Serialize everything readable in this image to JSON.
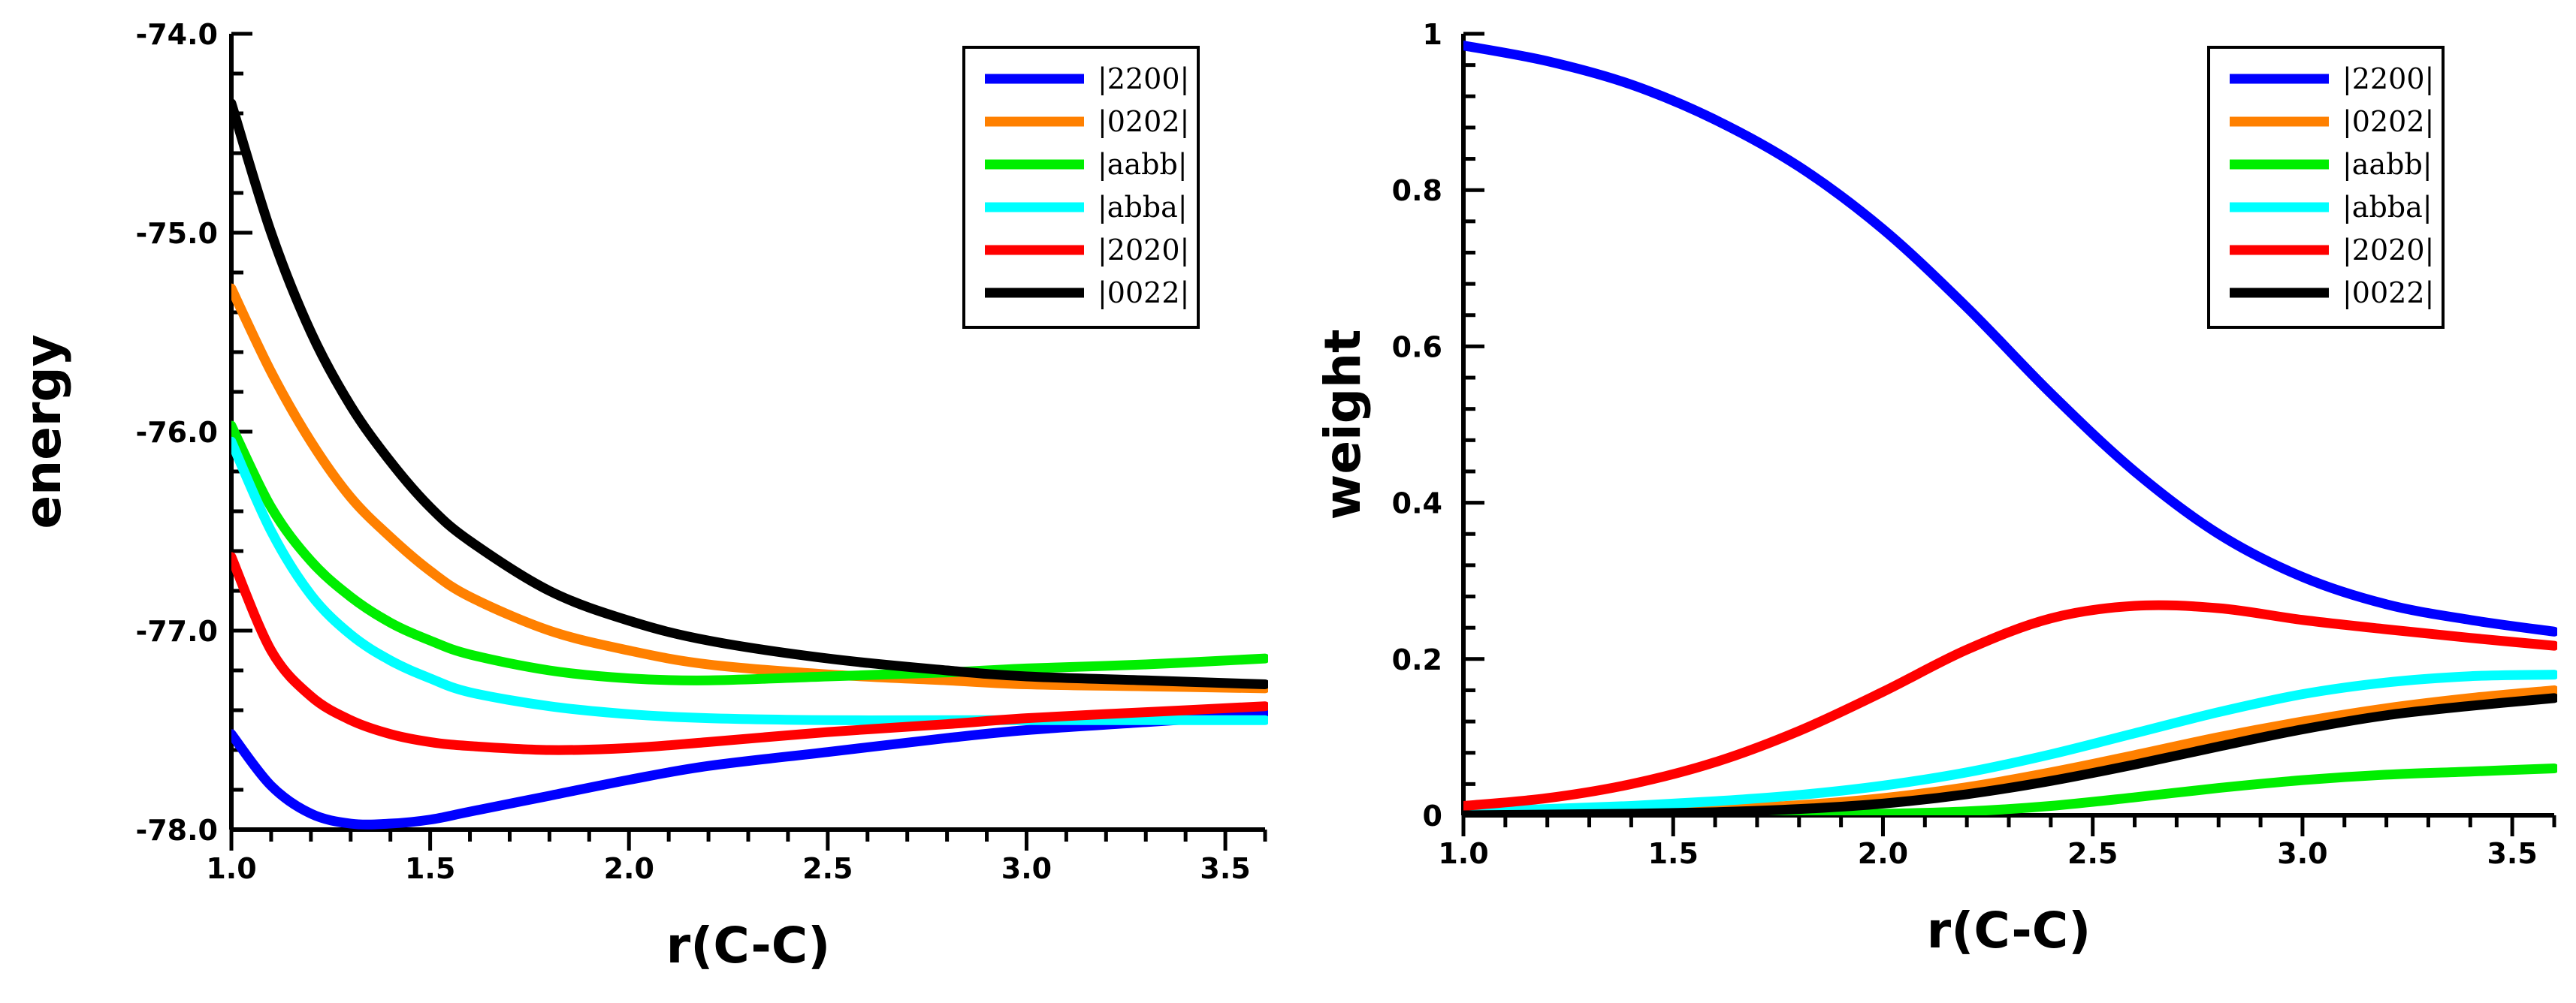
{
  "figure": {
    "panel_count": 2
  },
  "chart_data": [
    {
      "type": "line",
      "title": "",
      "xlabel": "r(C-C)",
      "ylabel": "energy",
      "xlim": [
        1.0,
        3.6
      ],
      "ylim": [
        -78.0,
        -74.0
      ],
      "x_ticks": [
        1.0,
        1.5,
        2.0,
        2.5,
        3.0,
        3.5
      ],
      "x_tick_labels": [
        "1.0",
        "1.5",
        "2.0",
        "2.5",
        "3.0",
        "3.5"
      ],
      "x_minor_step": 0.1,
      "y_ticks": [
        -78.0,
        -77.0,
        -76.0,
        -75.0,
        -74.0
      ],
      "y_tick_labels": [
        "-78.0",
        "-77.0",
        "-76.0",
        "-75.0",
        "-74.0"
      ],
      "y_minor_step": 0.2,
      "legend_position": "top-right",
      "series": [
        {
          "name": "|2200|",
          "color": "#0000ff",
          "x": [
            1.0,
            1.1,
            1.2,
            1.3,
            1.4,
            1.5,
            1.6,
            1.8,
            2.0,
            2.2,
            2.5,
            2.8,
            3.0,
            3.3,
            3.6
          ],
          "y": [
            -77.52,
            -77.78,
            -77.92,
            -77.97,
            -77.97,
            -77.95,
            -77.91,
            -77.83,
            -77.75,
            -77.68,
            -77.61,
            -77.54,
            -77.5,
            -77.46,
            -77.42
          ]
        },
        {
          "name": "|0202|",
          "color": "#ff8000",
          "x": [
            1.0,
            1.1,
            1.2,
            1.3,
            1.4,
            1.5,
            1.6,
            1.8,
            2.0,
            2.2,
            2.5,
            2.8,
            3.0,
            3.3,
            3.6
          ],
          "y": [
            -75.28,
            -75.7,
            -76.05,
            -76.33,
            -76.53,
            -76.7,
            -76.83,
            -77.0,
            -77.1,
            -77.17,
            -77.22,
            -77.25,
            -77.27,
            -77.28,
            -77.29
          ]
        },
        {
          "name": "|aabb|",
          "color": "#00ee00",
          "x": [
            1.0,
            1.1,
            1.2,
            1.3,
            1.4,
            1.5,
            1.6,
            1.8,
            2.0,
            2.2,
            2.5,
            2.8,
            3.0,
            3.3,
            3.6
          ],
          "y": [
            -75.97,
            -76.38,
            -76.65,
            -76.83,
            -76.96,
            -77.05,
            -77.12,
            -77.2,
            -77.24,
            -77.25,
            -77.23,
            -77.21,
            -77.19,
            -77.17,
            -77.14
          ]
        },
        {
          "name": "|abba|",
          "color": "#00ffff",
          "x": [
            1.0,
            1.1,
            1.2,
            1.3,
            1.4,
            1.5,
            1.6,
            1.8,
            2.0,
            2.2,
            2.5,
            2.8,
            3.0,
            3.3,
            3.6
          ],
          "y": [
            -76.05,
            -76.5,
            -76.82,
            -77.02,
            -77.15,
            -77.24,
            -77.31,
            -77.38,
            -77.42,
            -77.44,
            -77.45,
            -77.45,
            -77.45,
            -77.45,
            -77.45
          ]
        },
        {
          "name": "|2020|",
          "color": "#ff0000",
          "x": [
            1.0,
            1.1,
            1.2,
            1.3,
            1.4,
            1.5,
            1.6,
            1.8,
            2.0,
            2.2,
            2.5,
            2.8,
            3.0,
            3.3,
            3.6
          ],
          "y": [
            -76.63,
            -77.1,
            -77.33,
            -77.45,
            -77.52,
            -77.56,
            -77.58,
            -77.6,
            -77.59,
            -77.56,
            -77.51,
            -77.47,
            -77.44,
            -77.41,
            -77.38
          ]
        },
        {
          "name": "|0022|",
          "color": "#000000",
          "x": [
            1.0,
            1.1,
            1.2,
            1.3,
            1.4,
            1.5,
            1.6,
            1.8,
            2.0,
            2.2,
            2.5,
            2.8,
            3.0,
            3.3,
            3.6
          ],
          "y": [
            -74.35,
            -75.0,
            -75.5,
            -75.87,
            -76.15,
            -76.38,
            -76.55,
            -76.8,
            -76.95,
            -77.05,
            -77.14,
            -77.2,
            -77.23,
            -77.25,
            -77.27
          ]
        }
      ]
    },
    {
      "type": "line",
      "title": "",
      "xlabel": "r(C-C)",
      "ylabel": "weight",
      "xlim": [
        1.0,
        3.6
      ],
      "ylim": [
        0,
        1
      ],
      "x_ticks": [
        1.0,
        1.5,
        2.0,
        2.5,
        3.0,
        3.5
      ],
      "x_tick_labels": [
        "1.0",
        "1.5",
        "2.0",
        "2.5",
        "3.0",
        "3.5"
      ],
      "x_minor_step": 0.1,
      "y_ticks": [
        0,
        0.2,
        0.4,
        0.6,
        0.8,
        1
      ],
      "y_tick_labels": [
        "0",
        "0.2",
        "0.4",
        "0.6",
        "0.8",
        "1"
      ],
      "y_minor_step": 0.04,
      "legend_position": "top-right",
      "series": [
        {
          "name": "|2200|",
          "color": "#0000ff",
          "x": [
            1.0,
            1.2,
            1.4,
            1.6,
            1.8,
            2.0,
            2.2,
            2.4,
            2.6,
            2.8,
            3.0,
            3.2,
            3.4,
            3.6
          ],
          "y": [
            0.985,
            0.965,
            0.935,
            0.89,
            0.83,
            0.75,
            0.65,
            0.54,
            0.44,
            0.36,
            0.305,
            0.27,
            0.25,
            0.235
          ]
        },
        {
          "name": "|0202|",
          "color": "#ff8000",
          "x": [
            1.0,
            1.2,
            1.4,
            1.6,
            1.8,
            2.0,
            2.2,
            2.4,
            2.6,
            2.8,
            3.0,
            3.2,
            3.4,
            3.6
          ],
          "y": [
            0.002,
            0.003,
            0.005,
            0.008,
            0.013,
            0.022,
            0.036,
            0.055,
            0.077,
            0.1,
            0.12,
            0.137,
            0.15,
            0.16
          ]
        },
        {
          "name": "|aabb|",
          "color": "#00ee00",
          "x": [
            1.0,
            1.2,
            1.4,
            1.6,
            1.8,
            2.0,
            2.2,
            2.4,
            2.6,
            2.8,
            3.0,
            3.2,
            3.4,
            3.6
          ],
          "y": [
            0.0,
            0.0,
            0.0,
            0.0,
            0.001,
            0.002,
            0.005,
            0.012,
            0.023,
            0.035,
            0.045,
            0.052,
            0.056,
            0.06
          ]
        },
        {
          "name": "|abba|",
          "color": "#00ffff",
          "x": [
            1.0,
            1.2,
            1.4,
            1.6,
            1.8,
            2.0,
            2.2,
            2.4,
            2.6,
            2.8,
            3.0,
            3.2,
            3.4,
            3.6
          ],
          "y": [
            0.005,
            0.008,
            0.012,
            0.018,
            0.026,
            0.038,
            0.055,
            0.078,
            0.105,
            0.132,
            0.155,
            0.17,
            0.178,
            0.18
          ]
        },
        {
          "name": "|2020|",
          "color": "#ff0000",
          "x": [
            1.0,
            1.2,
            1.4,
            1.6,
            1.8,
            2.0,
            2.2,
            2.4,
            2.6,
            2.8,
            3.0,
            3.2,
            3.4,
            3.6
          ],
          "y": [
            0.012,
            0.022,
            0.04,
            0.068,
            0.108,
            0.158,
            0.212,
            0.252,
            0.268,
            0.265,
            0.25,
            0.238,
            0.227,
            0.217
          ]
        },
        {
          "name": "|0022|",
          "color": "#000000",
          "x": [
            1.0,
            1.2,
            1.4,
            1.6,
            1.8,
            2.0,
            2.2,
            2.4,
            2.6,
            2.8,
            3.0,
            3.2,
            3.4,
            3.6
          ],
          "y": [
            0.0,
            0.001,
            0.002,
            0.004,
            0.008,
            0.015,
            0.027,
            0.044,
            0.065,
            0.088,
            0.11,
            0.128,
            0.14,
            0.15
          ]
        }
      ]
    }
  ]
}
